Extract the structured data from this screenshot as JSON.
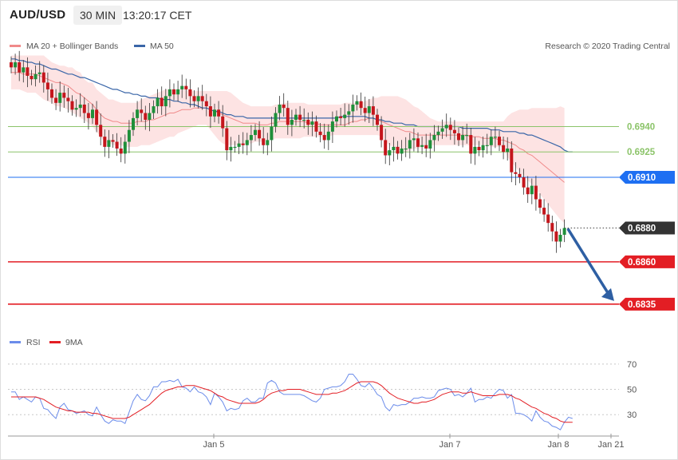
{
  "header": {
    "symbol": "AUD/USD",
    "timeframe": "30 MIN",
    "time": "13:20:17 CET"
  },
  "legend": {
    "bb": "MA 20 + Bollinger Bands",
    "ma50": "MA 50",
    "copyright": "Research © 2020 Trading Central",
    "rsi": "RSI",
    "rsi_ma": "9MA"
  },
  "colors": {
    "up": "#1f8f3a",
    "down": "#c4161c",
    "bb_fill": "#fde3e3",
    "ma20": "#f08a8a",
    "ma50": "#3a66a8",
    "resistance": "#8cc46a",
    "pivot": "#1e6ff2",
    "support": "#e31e24",
    "current": "#333333",
    "rsi": "#6b8cea",
    "rsi_ma": "#e31e24",
    "arrow": "#2e5fa3"
  },
  "chart_data": [
    {
      "type": "candlestick",
      "title": "AUD/USD 30 MIN",
      "x_labels": [
        "Jan 5",
        "Jan 7",
        "Jan 8",
        "Jan 21"
      ],
      "ylim": [
        0.6825,
        0.6978
      ],
      "levels": [
        {
          "label": "0.6940",
          "value": 0.694,
          "role": "resistance"
        },
        {
          "label": "0.6925",
          "value": 0.6925,
          "role": "resistance"
        },
        {
          "label": "0.6910",
          "value": 0.691,
          "role": "pivot"
        },
        {
          "label": "0.6880",
          "value": 0.688,
          "role": "current"
        },
        {
          "label": "0.6860",
          "value": 0.686,
          "role": "support"
        },
        {
          "label": "0.6835",
          "value": 0.6835,
          "role": "support"
        }
      ],
      "closes": [
        0.6975,
        0.6978,
        0.6972,
        0.6975,
        0.697,
        0.6968,
        0.6971,
        0.6972,
        0.6966,
        0.6962,
        0.6957,
        0.6954,
        0.696,
        0.6957,
        0.6955,
        0.695,
        0.6951,
        0.6953,
        0.6948,
        0.6945,
        0.695,
        0.6941,
        0.6934,
        0.6928,
        0.6932,
        0.6931,
        0.6927,
        0.6924,
        0.6931,
        0.6938,
        0.6945,
        0.695,
        0.6948,
        0.6944,
        0.6948,
        0.6952,
        0.6957,
        0.6952,
        0.6958,
        0.6962,
        0.6959,
        0.6962,
        0.6964,
        0.6962,
        0.6958,
        0.6955,
        0.6958,
        0.6955,
        0.6952,
        0.6946,
        0.695,
        0.6946,
        0.6939,
        0.6926,
        0.6928,
        0.6928,
        0.693,
        0.6929,
        0.6932,
        0.6935,
        0.6938,
        0.6933,
        0.6929,
        0.6932,
        0.694,
        0.6948,
        0.6953,
        0.6951,
        0.6941,
        0.6944,
        0.6947,
        0.6944,
        0.6944,
        0.6941,
        0.6943,
        0.6937,
        0.6935,
        0.6932,
        0.6937,
        0.6943,
        0.6946,
        0.6945,
        0.6947,
        0.6949,
        0.6953,
        0.6955,
        0.6951,
        0.6948,
        0.6952,
        0.6947,
        0.6941,
        0.6932,
        0.6923,
        0.6926,
        0.6928,
        0.6924,
        0.6927,
        0.6927,
        0.6932,
        0.6933,
        0.6928,
        0.6929,
        0.6927,
        0.6932,
        0.6935,
        0.6937,
        0.6939,
        0.6941,
        0.6938,
        0.6936,
        0.6932,
        0.6935,
        0.6935,
        0.6924,
        0.6928,
        0.6926,
        0.6929,
        0.6929,
        0.6934,
        0.6934,
        0.6929,
        0.6925,
        0.6927,
        0.6913,
        0.6912,
        0.691,
        0.6904,
        0.69,
        0.6905,
        0.6897,
        0.6892,
        0.6888,
        0.6883,
        0.6878,
        0.6872,
        0.6876,
        0.688
      ],
      "bb_upper": [
        0.6982,
        0.6982,
        0.6982,
        0.6982,
        0.6982,
        0.6982,
        0.6982,
        0.6982,
        0.6982,
        0.698,
        0.6978,
        0.6977,
        0.6976,
        0.6976,
        0.6975,
        0.6975,
        0.6973,
        0.6972,
        0.6968,
        0.6966,
        0.6966,
        0.6962,
        0.696,
        0.6958,
        0.6956,
        0.6956,
        0.6955,
        0.6954,
        0.6954,
        0.6954,
        0.6954,
        0.6954,
        0.6956,
        0.6957,
        0.6958,
        0.6959,
        0.696,
        0.6961,
        0.6962,
        0.6962,
        0.6962,
        0.6962,
        0.6962,
        0.6962,
        0.6961,
        0.6961,
        0.6961,
        0.6961,
        0.6961,
        0.6961,
        0.6961,
        0.6961,
        0.6961,
        0.6961,
        0.696,
        0.6958,
        0.6956,
        0.6954,
        0.6953,
        0.6952,
        0.6952,
        0.6952,
        0.6952,
        0.6952,
        0.6952,
        0.6953,
        0.6953,
        0.6954,
        0.6954,
        0.6954,
        0.6954,
        0.6954,
        0.6954,
        0.6953,
        0.6953,
        0.6953,
        0.6953,
        0.6953,
        0.6953,
        0.6953,
        0.6953,
        0.6953,
        0.6954,
        0.6954,
        0.6954,
        0.6954,
        0.6954,
        0.6955,
        0.6956,
        0.6957,
        0.6957,
        0.6958,
        0.6958,
        0.6958,
        0.6958,
        0.6958,
        0.6957,
        0.6956,
        0.6954,
        0.6952,
        0.6951,
        0.6949,
        0.6947,
        0.6945,
        0.6944,
        0.6943,
        0.6943,
        0.6943,
        0.6943,
        0.6943,
        0.6943,
        0.6943,
        0.6943,
        0.6943,
        0.6943,
        0.6943,
        0.6943,
        0.6943,
        0.6943,
        0.6943,
        0.6943,
        0.6943,
        0.6946,
        0.6948,
        0.6949,
        0.695,
        0.695,
        0.695,
        0.6951,
        0.6951,
        0.6951,
        0.6951,
        0.6951,
        0.6951,
        0.6951,
        0.6952,
        0.6951
      ],
      "ma20": [
        0.6972,
        0.6972,
        0.6972,
        0.6971,
        0.6971,
        0.6971,
        0.6971,
        0.697,
        0.6969,
        0.6968,
        0.6967,
        0.6966,
        0.6966,
        0.6965,
        0.6964,
        0.6962,
        0.696,
        0.6959,
        0.6957,
        0.6955,
        0.6953,
        0.695,
        0.6947,
        0.6945,
        0.6944,
        0.6943,
        0.6943,
        0.6942,
        0.6942,
        0.6942,
        0.6942,
        0.6943,
        0.6943,
        0.6943,
        0.6944,
        0.6944,
        0.6945,
        0.6946,
        0.6947,
        0.6948,
        0.6948,
        0.6949,
        0.695,
        0.695,
        0.695,
        0.6951,
        0.6951,
        0.6951,
        0.6951,
        0.695,
        0.6949,
        0.6948,
        0.6947,
        0.6946,
        0.6945,
        0.6944,
        0.6943,
        0.6942,
        0.6942,
        0.6942,
        0.6942,
        0.6941,
        0.6941,
        0.6941,
        0.6942,
        0.6942,
        0.6943,
        0.6943,
        0.6943,
        0.6943,
        0.6943,
        0.6943,
        0.6943,
        0.6942,
        0.6942,
        0.6942,
        0.6941,
        0.6941,
        0.6941,
        0.6941,
        0.6941,
        0.6941,
        0.6941,
        0.6942,
        0.6943,
        0.6943,
        0.6944,
        0.6944,
        0.6945,
        0.6945,
        0.6944,
        0.6943,
        0.6942,
        0.6941,
        0.694,
        0.6939,
        0.6938,
        0.6937,
        0.6937,
        0.6936,
        0.6935,
        0.6935,
        0.6935,
        0.6935,
        0.6935,
        0.6935,
        0.6935,
        0.6935,
        0.6935,
        0.6935,
        0.6935,
        0.6935,
        0.6935,
        0.6934,
        0.6934,
        0.6934,
        0.6933,
        0.6933,
        0.6933,
        0.6933,
        0.6932,
        0.6932,
        0.6931,
        0.693,
        0.6929,
        0.6927,
        0.6926,
        0.6924,
        0.6923,
        0.6921,
        0.6919,
        0.6917,
        0.6915,
        0.6913,
        0.6911,
        0.6909,
        0.6907
      ],
      "bb_lower": [
        0.6962,
        0.6962,
        0.6962,
        0.6961,
        0.696,
        0.696,
        0.696,
        0.6958,
        0.6956,
        0.6955,
        0.6954,
        0.6952,
        0.6952,
        0.6951,
        0.695,
        0.6948,
        0.6947,
        0.6945,
        0.6944,
        0.6942,
        0.694,
        0.6937,
        0.6934,
        0.6931,
        0.693,
        0.6929,
        0.6929,
        0.6929,
        0.6928,
        0.6928,
        0.6928,
        0.6928,
        0.6929,
        0.6929,
        0.6929,
        0.693,
        0.6931,
        0.6932,
        0.6933,
        0.6934,
        0.6934,
        0.6936,
        0.6937,
        0.6938,
        0.6939,
        0.694,
        0.6941,
        0.6941,
        0.6941,
        0.6938,
        0.6935,
        0.6932,
        0.693,
        0.6929,
        0.6929,
        0.6929,
        0.6929,
        0.6929,
        0.693,
        0.693,
        0.6931,
        0.6931,
        0.6931,
        0.6932,
        0.6932,
        0.6933,
        0.6933,
        0.6933,
        0.6933,
        0.6933,
        0.6933,
        0.6933,
        0.6934,
        0.6934,
        0.6934,
        0.6934,
        0.6934,
        0.6934,
        0.6934,
        0.6935,
        0.6935,
        0.6935,
        0.6935,
        0.6935,
        0.6935,
        0.6935,
        0.6935,
        0.6935,
        0.6935,
        0.6935,
        0.6935,
        0.6934,
        0.6931,
        0.6929,
        0.6928,
        0.6926,
        0.6926,
        0.6925,
        0.6926,
        0.6927,
        0.6927,
        0.6928,
        0.6928,
        0.6929,
        0.6929,
        0.6929,
        0.6929,
        0.6929,
        0.6929,
        0.6929,
        0.6929,
        0.6929,
        0.6929,
        0.6929,
        0.6929,
        0.6929,
        0.6929,
        0.6929,
        0.6928,
        0.6928,
        0.6928,
        0.6928,
        0.6922,
        0.6919,
        0.6916,
        0.6913,
        0.6911,
        0.6908,
        0.6906,
        0.6903,
        0.69,
        0.6897,
        0.6894,
        0.6891,
        0.6888,
        0.6885,
        0.6883
      ],
      "ma50": [
        0.698,
        0.698,
        0.6979,
        0.6979,
        0.6978,
        0.6978,
        0.6977,
        0.6977,
        0.6976,
        0.6975,
        0.6974,
        0.6974,
        0.6973,
        0.6972,
        0.6971,
        0.6971,
        0.697,
        0.6969,
        0.6969,
        0.6968,
        0.6967,
        0.6966,
        0.6965,
        0.6964,
        0.6963,
        0.6962,
        0.6962,
        0.6961,
        0.696,
        0.696,
        0.6959,
        0.6959,
        0.6958,
        0.6958,
        0.6957,
        0.6957,
        0.6957,
        0.6956,
        0.6956,
        0.6956,
        0.6955,
        0.6955,
        0.6954,
        0.6954,
        0.6953,
        0.6953,
        0.6952,
        0.6951,
        0.6951,
        0.695,
        0.6949,
        0.6949,
        0.6948,
        0.6947,
        0.6947,
        0.6946,
        0.6946,
        0.6946,
        0.6945,
        0.6945,
        0.6945,
        0.6945,
        0.6945,
        0.6945,
        0.6945,
        0.6945,
        0.6945,
        0.6945,
        0.6945,
        0.6945,
        0.6945,
        0.6945,
        0.6945,
        0.6945,
        0.6945,
        0.6945,
        0.6945,
        0.6945,
        0.6945,
        0.6945,
        0.6945,
        0.6946,
        0.6946,
        0.6946,
        0.6946,
        0.6946,
        0.6946,
        0.6946,
        0.6945,
        0.6945,
        0.6944,
        0.6944,
        0.6943,
        0.6943,
        0.6942,
        0.6942,
        0.6942,
        0.6941,
        0.6941,
        0.6941,
        0.694,
        0.694,
        0.694,
        0.694,
        0.694,
        0.694,
        0.694,
        0.694,
        0.694,
        0.694,
        0.694,
        0.6939,
        0.6939,
        0.6939,
        0.6939,
        0.6939,
        0.6939,
        0.6939,
        0.6938,
        0.6938,
        0.6938,
        0.6937,
        0.6937,
        0.6937,
        0.6937,
        0.6936,
        0.6936,
        0.6935,
        0.6935,
        0.6934,
        0.6933,
        0.6932,
        0.6931,
        0.693,
        0.6929,
        0.6928,
        0.6926,
        0.6925,
        0.6925
      ],
      "projection": {
        "from": 0.688,
        "to": 0.6835
      }
    },
    {
      "type": "line",
      "title": "RSI",
      "ylim": [
        15,
        80
      ],
      "yticks": [
        "70",
        "50",
        "30"
      ],
      "series": [
        {
          "name": "RSI",
          "values": [
            48,
            48,
            42,
            44,
            42,
            40,
            44,
            43,
            35,
            34,
            30,
            27,
            36,
            39,
            34,
            33,
            31,
            32,
            33,
            30,
            29,
            36,
            30,
            25,
            23,
            26,
            25,
            25,
            23,
            32,
            41,
            46,
            42,
            41,
            45,
            52,
            52,
            56,
            56,
            57,
            56,
            58,
            52,
            51,
            48,
            52,
            48,
            47,
            44,
            38,
            47,
            44,
            40,
            33,
            35,
            34,
            35,
            41,
            43,
            40,
            40,
            43,
            43,
            55,
            57,
            55,
            48,
            46,
            46,
            46,
            46,
            46,
            45,
            43,
            41,
            40,
            43,
            50,
            51,
            52,
            52,
            53,
            56,
            62,
            62,
            58,
            53,
            52,
            55,
            51,
            46,
            44,
            36,
            33,
            38,
            37,
            38,
            38,
            40,
            43,
            43,
            44,
            43,
            43,
            44,
            49,
            50,
            51,
            50,
            45,
            46,
            44,
            47,
            51,
            40,
            42,
            42,
            44,
            43,
            47,
            50,
            49,
            43,
            46,
            31,
            31,
            30,
            28,
            25,
            33,
            28,
            25,
            24,
            21,
            20,
            18,
            24,
            28,
            27
          ]
        },
        {
          "name": "9MA",
          "values": [
            44,
            44,
            44,
            44,
            44,
            44,
            44,
            43,
            42,
            40,
            38,
            36,
            35,
            34,
            33,
            33,
            32,
            32,
            32,
            32,
            31,
            31,
            30,
            29,
            28,
            27,
            27,
            27,
            27,
            28,
            30,
            32,
            34,
            36,
            38,
            41,
            44,
            47,
            49,
            50,
            51,
            52,
            52,
            53,
            53,
            53,
            52,
            51,
            50,
            49,
            47,
            45,
            44,
            42,
            41,
            40,
            39,
            39,
            39,
            39,
            39,
            40,
            42,
            45,
            47,
            48,
            49,
            49,
            50,
            50,
            50,
            50,
            49,
            48,
            47,
            46,
            46,
            46,
            46,
            47,
            47,
            48,
            49,
            51,
            53,
            55,
            56,
            56,
            56,
            56,
            55,
            53,
            50,
            47,
            45,
            43,
            42,
            41,
            40,
            39,
            39,
            40,
            40,
            41,
            42,
            44,
            46,
            47,
            48,
            48,
            48,
            47,
            47,
            48,
            47,
            46,
            45,
            45,
            45,
            45,
            46,
            46,
            46,
            45,
            43,
            42,
            40,
            38,
            36,
            35,
            33,
            31,
            30,
            28,
            27,
            25,
            24,
            24,
            24
          ]
        }
      ]
    }
  ]
}
